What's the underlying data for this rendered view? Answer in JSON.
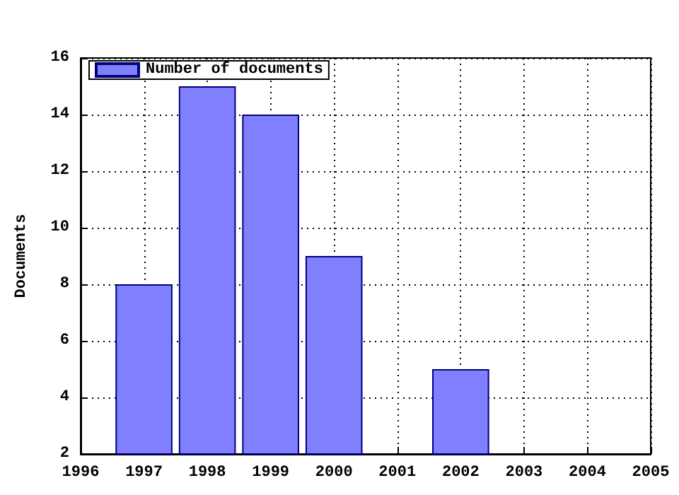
{
  "chart_data": {
    "type": "bar",
    "ylabel": "Documents",
    "x": [
      1997,
      1998,
      1999,
      2000,
      2002
    ],
    "series": [
      {
        "name": "Number of documents",
        "color": "#8080ff",
        "values": [
          8,
          15,
          14,
          9,
          5
        ]
      }
    ],
    "xlim": [
      1996,
      2005
    ],
    "xticks": [
      1996,
      1997,
      1998,
      1999,
      2000,
      2001,
      2002,
      2003,
      2004,
      2005
    ],
    "ylim": [
      2,
      16
    ],
    "yticks": [
      2,
      4,
      6,
      8,
      10,
      12,
      14,
      16
    ],
    "grid": true,
    "legend": "top left"
  }
}
